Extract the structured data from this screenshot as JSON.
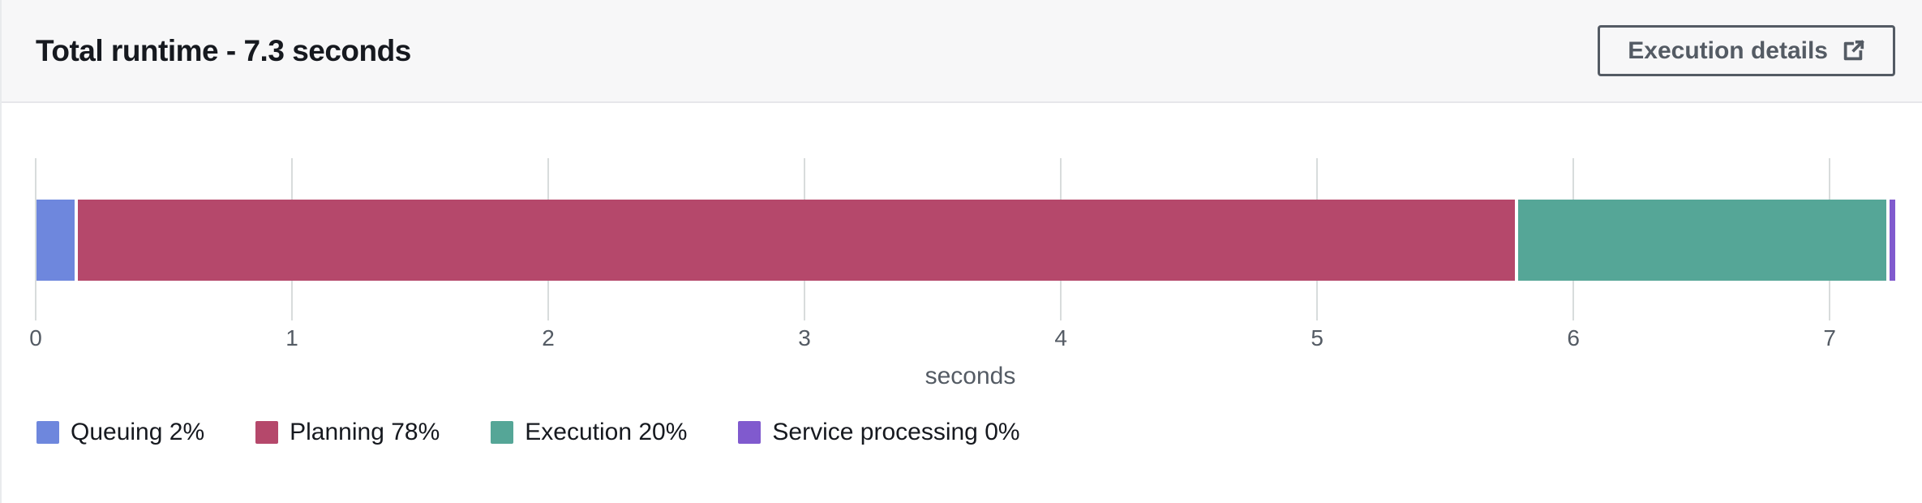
{
  "header": {
    "title": "Total runtime - 7.3 seconds",
    "button": {
      "label": "Execution details",
      "icon": "external-link-icon"
    }
  },
  "chart_data": {
    "type": "bar",
    "variant": "horizontal-stacked",
    "title": "Total runtime - 7.3 seconds",
    "total_seconds": 7.3,
    "xlabel": "seconds",
    "xlim": [
      0,
      7.3
    ],
    "ticks": [
      0,
      1,
      2,
      3,
      4,
      5,
      6,
      7
    ],
    "grid": true,
    "legend_position": "bottom",
    "segments": [
      {
        "name": "Queuing",
        "percent": 2,
        "seconds": 0.16,
        "color": "#6E87DD"
      },
      {
        "name": "Planning",
        "percent": 78,
        "seconds": 5.62,
        "color": "#B5486B"
      },
      {
        "name": "Execution",
        "percent": 20,
        "seconds": 1.45,
        "color": "#55A697"
      },
      {
        "name": "Service processing",
        "percent": 0,
        "seconds": 0.035,
        "color": "#805ACE"
      }
    ],
    "legend": [
      {
        "label": "Queuing 2%",
        "color": "#6E87DD"
      },
      {
        "label": "Planning 78%",
        "color": "#B5486B"
      },
      {
        "label": "Execution 20%",
        "color": "#55A697"
      },
      {
        "label": "Service processing 0%",
        "color": "#805ACE"
      }
    ]
  },
  "colors": {
    "header_bg": "#f7f7f8",
    "border": "#e7e7ea",
    "gridline": "#d8dcdc",
    "text_primary": "#16191f",
    "text_secondary": "#545b64",
    "button_border": "#545b64"
  }
}
